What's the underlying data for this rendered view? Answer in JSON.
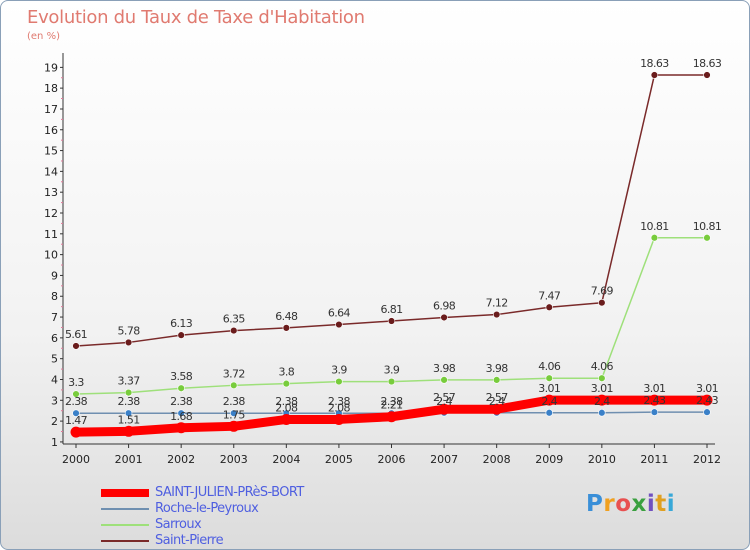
{
  "title": "Evolution du Taux de Taxe d'Habitation",
  "subtitle": "(en %)",
  "logo": {
    "text": "Proxiti",
    "letter_colors": [
      "#3a8fd8",
      "#f0a020",
      "#e85050",
      "#3aa040",
      "#7050c0",
      "#e0a020",
      "#38a8d8"
    ]
  },
  "chart_data": {
    "type": "line",
    "x": [
      "2000",
      "2001",
      "2002",
      "2003",
      "2004",
      "2005",
      "2006",
      "2007",
      "2008",
      "2009",
      "2010",
      "2011",
      "2012"
    ],
    "yticks": [
      "1",
      "2",
      "3",
      "4",
      "5",
      "6",
      "7",
      "8",
      "9",
      "10",
      "11",
      "12",
      "13",
      "14",
      "15",
      "16",
      "17",
      "18",
      "19"
    ],
    "ylim": [
      0.9,
      19.4
    ],
    "grid": false,
    "legend_position": "bottom-left",
    "series": [
      {
        "name": "SAINT-JULIEN-PRèS-BORT",
        "color": "#ff0000",
        "marker_color": "#ff0000",
        "values": [
          1.47,
          1.51,
          1.68,
          1.75,
          2.08,
          2.08,
          2.21,
          2.57,
          2.57,
          3.01,
          3.01,
          3.01,
          3.01
        ],
        "labels": [
          "1.47",
          "1.51",
          "1.68",
          "1.75",
          "2.08",
          "2.08",
          "2.21",
          "2.57",
          "2.57",
          "3.01",
          "3.01",
          "3.01",
          "3.01"
        ]
      },
      {
        "name": "Roche-le-Peyroux",
        "color": "#6f8fb0",
        "marker_color": "#3a80c8",
        "values": [
          2.38,
          2.38,
          2.38,
          2.38,
          2.38,
          2.38,
          2.38,
          2.4,
          2.4,
          2.4,
          2.4,
          2.43,
          2.43
        ],
        "labels": [
          "2.38",
          "2.38",
          "2.38",
          "2.38",
          "2.38",
          "2.38",
          "2.38",
          "2.4",
          "2.4",
          "2.4",
          "2.4",
          "2.43",
          "2.43"
        ]
      },
      {
        "name": "Sarroux",
        "color": "#9ee07a",
        "marker_color": "#78cc3c",
        "values": [
          3.3,
          3.37,
          3.58,
          3.72,
          3.8,
          3.9,
          3.9,
          3.98,
          3.98,
          4.06,
          4.06,
          10.81,
          10.81
        ],
        "labels": [
          "3.3",
          "3.37",
          "3.58",
          "3.72",
          "3.8",
          "3.9",
          "3.9",
          "3.98",
          "3.98",
          "4.06",
          "4.06",
          "10.81",
          "10.81"
        ]
      },
      {
        "name": "Saint-Pierre",
        "color": "#7a2a2a",
        "marker_color": "#6a1c1c",
        "values": [
          5.61,
          5.78,
          6.13,
          6.35,
          6.48,
          6.64,
          6.81,
          6.98,
          7.12,
          7.47,
          7.69,
          18.63,
          18.63
        ],
        "labels": [
          "5.61",
          "5.78",
          "6.13",
          "6.35",
          "6.48",
          "6.64",
          "6.81",
          "6.98",
          "7.12",
          "7.47",
          "7.69",
          "18.63",
          "18.63"
        ]
      }
    ]
  }
}
